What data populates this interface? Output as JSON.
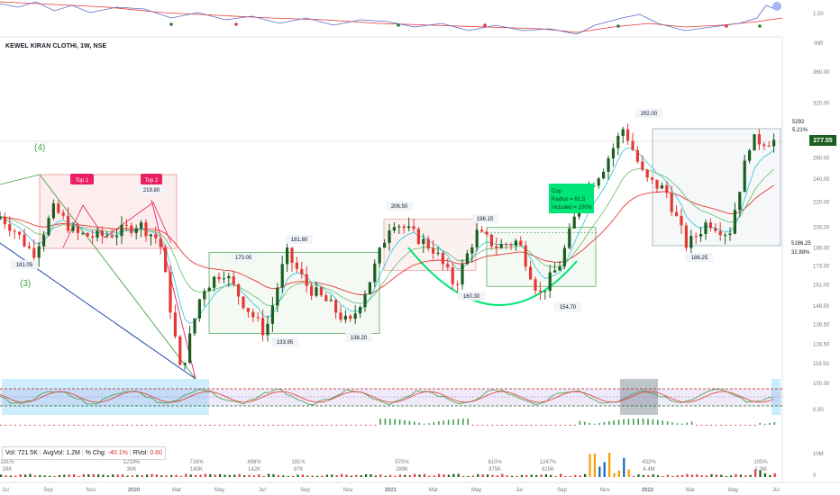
{
  "header": {
    "symbol": "KEWEL KIRAN CLOTHI, 1W, NSE",
    "currency": "INR"
  },
  "top_axis_label": "1.50",
  "last_price": {
    "value": "277.55",
    "target": "5292",
    "target_pct": "5.21%"
  },
  "right_side_label": {
    "price": "5186.25",
    "pct": "32.89%"
  },
  "wave_labels": [
    "(4)",
    "(3)"
  ],
  "pattern_labels": {
    "top1": "Top 1",
    "top2": "Top 2"
  },
  "cup_box": {
    "line1": "Cup",
    "line2": "Radius = 61.5",
    "line3": "Included = 100%"
  },
  "volume_legend": {
    "vol_label": "Vol:",
    "vol_value": "721.5K",
    "avg_label": "AvgVol:",
    "avg_value": "1.2M",
    "chg_label": "% Chg:",
    "chg_value": "-40.1%",
    "rvol_label": "RVol:",
    "rvol_value": "0.60"
  },
  "volume_annotations": [
    {
      "x": 8,
      "pct": "191%",
      "vol": "28K"
    },
    {
      "x": 146,
      "pct": "1219%",
      "vol": "30K"
    },
    {
      "x": 218,
      "pct": "716%",
      "vol": "140K"
    },
    {
      "x": 282,
      "pct": "498%",
      "vol": "142K"
    },
    {
      "x": 331,
      "pct": "191%",
      "vol": "97K"
    },
    {
      "x": 446,
      "pct": "570%",
      "vol": "289K"
    },
    {
      "x": 549,
      "pct": "610%",
      "vol": "375K"
    },
    {
      "x": 608,
      "pct": "1247%",
      "vol": "915K"
    },
    {
      "x": 720,
      "pct": "432%",
      "vol": "4.4M"
    },
    {
      "x": 844,
      "pct": "105%",
      "vol": "2.3M"
    }
  ],
  "colors": {
    "up": "#1b5e20",
    "down": "#e53935",
    "ema_fast": "#26c6da",
    "ema_mid": "#66bb6a",
    "ema_slow": "#e53935",
    "box_green": "#43a047",
    "box_red": "#e57373",
    "cup": "#00e676"
  },
  "chart_data": {
    "type": "candlestick",
    "title": "KEWEL KIRAN CLOTHI, 1W, NSE",
    "x_axis": {
      "tick_labels": [
        "Jul",
        "Sep",
        "Nov",
        "2020",
        "Mar",
        "May",
        "Jul",
        "Sep",
        "Nov",
        "2021",
        "Mar",
        "May",
        "Jul",
        "Sep",
        "Nov",
        "2022",
        "Mar",
        "May",
        "Jul"
      ]
    },
    "y_axis": {
      "scale": "log",
      "ylim": [
        110,
        400
      ],
      "tick_labels": [
        "360.00",
        "320.00",
        "280.00",
        "260.00",
        "240.00",
        "220.00",
        "200.00",
        "185.00",
        "173.00",
        "161.00",
        "148.50",
        "138.50",
        "128.50",
        "119.50",
        "110.00"
      ]
    },
    "oscillator_axis": {
      "tick_labels": [
        "100.00",
        "0.00"
      ]
    },
    "volume_axis": {
      "tick_labels": [
        "10M",
        "0"
      ]
    },
    "price_path": [
      {
        "x": "2019-06",
        "price": 215
      },
      {
        "x": "2019-07",
        "price": 200
      },
      {
        "x": "2019-08",
        "price": 181.05
      },
      {
        "x": "2019-09",
        "price": 215
      },
      {
        "x": "2019-10",
        "price": 195
      },
      {
        "x": "2019-11",
        "price": 193
      },
      {
        "x": "2019-12",
        "price": 196
      },
      {
        "x": "2020-01",
        "price": 203
      },
      {
        "x": "2020-02",
        "price": 190
      },
      {
        "x": "2020-03",
        "price": 115
      },
      {
        "x": "2020-04",
        "price": 158
      },
      {
        "x": "2020-05",
        "price": 170.05
      },
      {
        "x": "2020-06",
        "price": 150
      },
      {
        "x": "2020-07",
        "price": 133.95
      },
      {
        "x": "2020-08",
        "price": 181.8
      },
      {
        "x": "2020-09",
        "price": 160
      },
      {
        "x": "2020-10",
        "price": 150
      },
      {
        "x": "2020-11",
        "price": 138.2
      },
      {
        "x": "2020-12",
        "price": 165
      },
      {
        "x": "2021-01",
        "price": 206.5
      },
      {
        "x": "2021-02",
        "price": 195
      },
      {
        "x": "2021-03",
        "price": 184
      },
      {
        "x": "2021-04",
        "price": 160.3
      },
      {
        "x": "2021-05",
        "price": 196.15
      },
      {
        "x": "2021-06",
        "price": 186
      },
      {
        "x": "2021-07",
        "price": 190
      },
      {
        "x": "2021-08",
        "price": 154.7
      },
      {
        "x": "2021-09",
        "price": 175
      },
      {
        "x": "2021-10",
        "price": 225
      },
      {
        "x": "2021-11",
        "price": 250
      },
      {
        "x": "2021-12",
        "price": 292
      },
      {
        "x": "2022-01",
        "price": 240
      },
      {
        "x": "2022-02",
        "price": 230
      },
      {
        "x": "2022-03",
        "price": 186.25
      },
      {
        "x": "2022-04",
        "price": 205
      },
      {
        "x": "2022-05",
        "price": 195
      },
      {
        "x": "2022-06",
        "price": 277.55
      }
    ],
    "annotations": [
      {
        "label": "181.05",
        "price": 181.05
      },
      {
        "label": "219.80",
        "price": 219.8
      },
      {
        "label": "170.05",
        "price": 170.05
      },
      {
        "label": "133.95",
        "price": 133.95
      },
      {
        "label": "181.80",
        "price": 181.8
      },
      {
        "label": "138.20",
        "price": 138.2
      },
      {
        "label": "206.50",
        "price": 206.5
      },
      {
        "label": "196.15",
        "price": 196.15
      },
      {
        "label": "160.30",
        "price": 160.3
      },
      {
        "label": "154.70",
        "price": 154.7
      },
      {
        "label": "292.00",
        "price": 292
      },
      {
        "label": "186.25",
        "price": 186.25
      }
    ],
    "last_close": 277.55
  }
}
